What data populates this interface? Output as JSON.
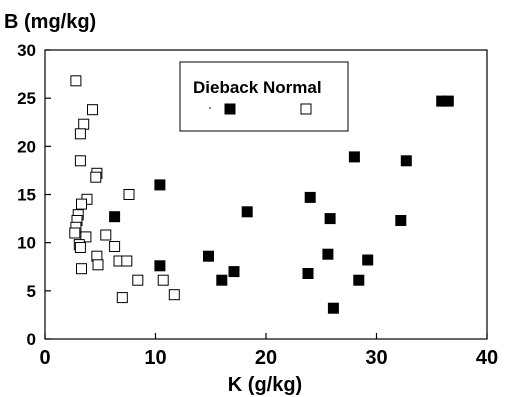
{
  "chart_data": {
    "type": "scatter",
    "title": "",
    "ylabel": "B (mg/kg)",
    "xlabel": "K (g/kg)",
    "xlim": [
      0,
      40
    ],
    "ylim": [
      0,
      30
    ],
    "xticks": [
      0,
      10,
      20,
      30,
      40
    ],
    "yticks": [
      0,
      5,
      10,
      15,
      20,
      25,
      30
    ],
    "grid": false,
    "legend_position": "top-center",
    "series": [
      {
        "name": "Dieback",
        "marker": "filled-square",
        "color": "#000000",
        "points": [
          [
            6.3,
            12.7
          ],
          [
            10.4,
            16.0
          ],
          [
            10.4,
            7.6
          ],
          [
            14.8,
            8.6
          ],
          [
            16.0,
            6.1
          ],
          [
            17.1,
            7.0
          ],
          [
            18.3,
            13.2
          ],
          [
            23.8,
            6.8
          ],
          [
            24.0,
            14.7
          ],
          [
            25.6,
            8.8
          ],
          [
            25.8,
            12.5
          ],
          [
            26.1,
            3.2
          ],
          [
            28.0,
            18.9
          ],
          [
            28.4,
            6.1
          ],
          [
            29.2,
            8.2
          ],
          [
            32.2,
            12.3
          ],
          [
            32.7,
            18.5
          ],
          [
            35.9,
            24.7
          ],
          [
            36.5,
            24.7
          ]
        ]
      },
      {
        "name": "Normal",
        "marker": "open-square",
        "color": "#000000",
        "points": [
          [
            2.8,
            26.8
          ],
          [
            4.3,
            23.8
          ],
          [
            3.5,
            22.3
          ],
          [
            3.2,
            21.3
          ],
          [
            3.2,
            18.5
          ],
          [
            4.7,
            17.2
          ],
          [
            4.6,
            16.8
          ],
          [
            7.6,
            15.0
          ],
          [
            3.8,
            14.5
          ],
          [
            3.3,
            14.0
          ],
          [
            3.0,
            12.9
          ],
          [
            2.9,
            12.3
          ],
          [
            2.8,
            11.6
          ],
          [
            2.7,
            11.0
          ],
          [
            5.5,
            10.8
          ],
          [
            3.7,
            10.6
          ],
          [
            3.1,
            9.8
          ],
          [
            3.2,
            9.5
          ],
          [
            6.3,
            9.6
          ],
          [
            4.7,
            8.6
          ],
          [
            6.7,
            8.1
          ],
          [
            7.4,
            8.1
          ],
          [
            4.8,
            7.7
          ],
          [
            3.3,
            7.3
          ],
          [
            8.4,
            6.1
          ],
          [
            10.7,
            6.1
          ],
          [
            11.7,
            4.6
          ],
          [
            7.0,
            4.3
          ]
        ]
      }
    ]
  }
}
